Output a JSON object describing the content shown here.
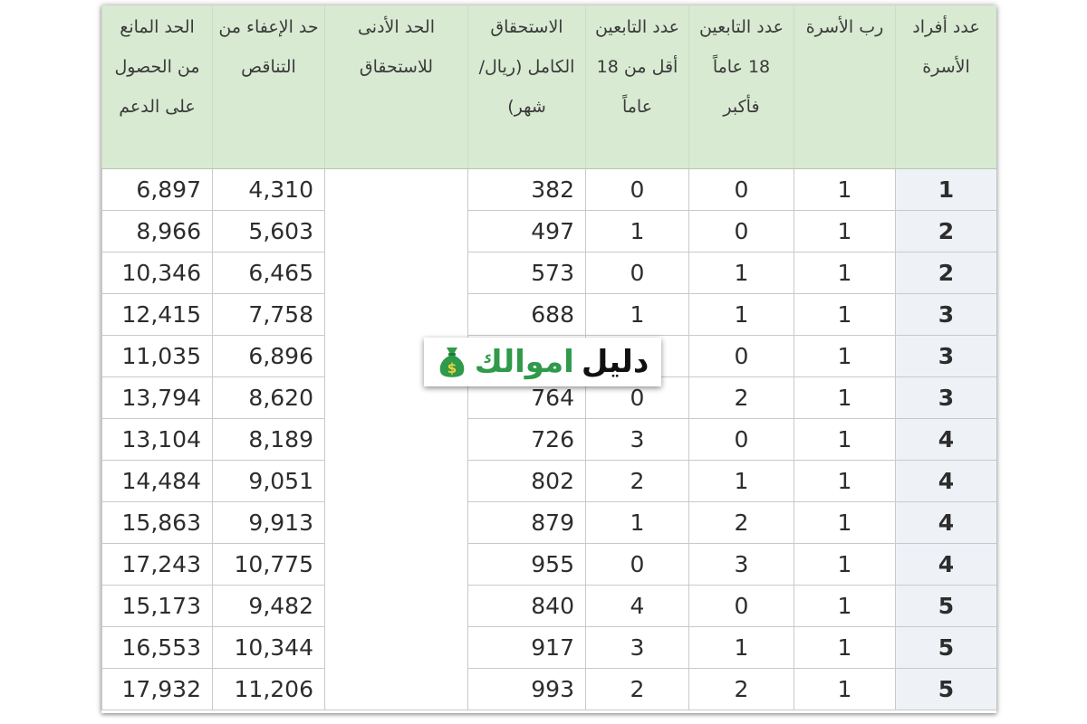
{
  "colors": {
    "header_bg": "#d8ead2",
    "members_col_bg": "#eef2f7",
    "logo_green": "#2e9a4a"
  },
  "headers": [
    "الحد المانع من الحصول على الدعم",
    "حد الإعفاء من التناقص",
    "الحد الأدنى للاستحقاق",
    "الاستحقاق الكامل (ريال/شهر)",
    "عدد التابعين أقل من 18 عاماً",
    "عدد التابعين 18 عاماً فأكبر",
    "رب الأسرة",
    "عدد أفراد الأسرة"
  ],
  "rows": [
    {
      "cutoff": "6,897",
      "exemption": "4,310",
      "minimum": "",
      "full": "382",
      "under18": "0",
      "over18": "0",
      "head": "1",
      "members": "1"
    },
    {
      "cutoff": "8,966",
      "exemption": "5,603",
      "minimum": "",
      "full": "497",
      "under18": "1",
      "over18": "0",
      "head": "1",
      "members": "2"
    },
    {
      "cutoff": "10,346",
      "exemption": "6,465",
      "minimum": "",
      "full": "573",
      "under18": "0",
      "over18": "1",
      "head": "1",
      "members": "2"
    },
    {
      "cutoff": "12,415",
      "exemption": "7,758",
      "minimum": "",
      "full": "688",
      "under18": "1",
      "over18": "1",
      "head": "1",
      "members": "3"
    },
    {
      "cutoff": "11,035",
      "exemption": "6,896",
      "minimum": "",
      "full": "",
      "under18": "",
      "over18": "0",
      "head": "1",
      "members": "3"
    },
    {
      "cutoff": "13,794",
      "exemption": "8,620",
      "minimum": "",
      "full": "764",
      "under18": "0",
      "over18": "2",
      "head": "1",
      "members": "3"
    },
    {
      "cutoff": "13,104",
      "exemption": "8,189",
      "minimum": "",
      "full": "726",
      "under18": "3",
      "over18": "0",
      "head": "1",
      "members": "4"
    },
    {
      "cutoff": "14,484",
      "exemption": "9,051",
      "minimum": "",
      "full": "802",
      "under18": "2",
      "over18": "1",
      "head": "1",
      "members": "4"
    },
    {
      "cutoff": "15,863",
      "exemption": "9,913",
      "minimum": "",
      "full": "879",
      "under18": "1",
      "over18": "2",
      "head": "1",
      "members": "4"
    },
    {
      "cutoff": "17,243",
      "exemption": "10,775",
      "minimum": "",
      "full": "955",
      "under18": "0",
      "over18": "3",
      "head": "1",
      "members": "4"
    },
    {
      "cutoff": "15,173",
      "exemption": "9,482",
      "minimum": "",
      "full": "840",
      "under18": "4",
      "over18": "0",
      "head": "1",
      "members": "5"
    },
    {
      "cutoff": "16,553",
      "exemption": "10,344",
      "minimum": "",
      "full": "917",
      "under18": "3",
      "over18": "1",
      "head": "1",
      "members": "5"
    },
    {
      "cutoff": "17,932",
      "exemption": "11,206",
      "minimum": "",
      "full": "993",
      "under18": "2",
      "over18": "2",
      "head": "1",
      "members": "5"
    }
  ],
  "watermark": {
    "part_1": "دليل",
    "part_2": "اموالك",
    "icon": "money-bag-icon"
  }
}
